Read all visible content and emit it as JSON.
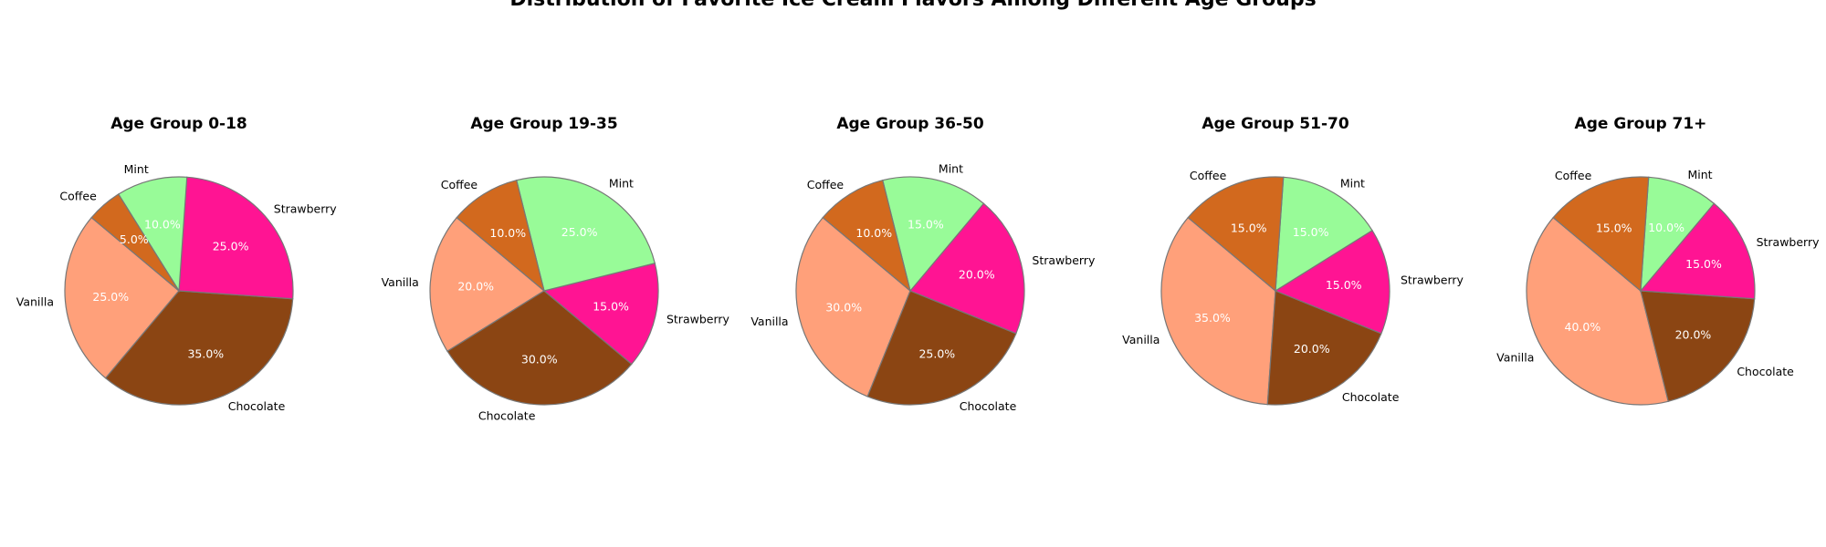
{
  "figure": {
    "title": "Distribution of Favorite Ice Cream Flavors Among Different Age Groups"
  },
  "colors": {
    "Vanilla": "#FFA07A",
    "Chocolate": "#8B4513",
    "Strawberry": "#FF1493",
    "Mint": "#98FB98",
    "Coffee": "#D2691E",
    "edge": "#777777"
  },
  "chart_data": [
    {
      "type": "pie",
      "title": "Age Group 0-18",
      "labels": [
        "Vanilla",
        "Chocolate",
        "Strawberry",
        "Mint",
        "Coffee"
      ],
      "values": [
        25,
        35,
        25,
        10,
        5
      ],
      "value_labels": [
        "25.0%",
        "35.0%",
        "25.0%",
        "10.0%",
        "5.0%"
      ],
      "start_angle_deg": 140
    },
    {
      "type": "pie",
      "title": "Age Group 19-35",
      "labels": [
        "Vanilla",
        "Chocolate",
        "Strawberry",
        "Mint",
        "Coffee"
      ],
      "values": [
        20,
        30,
        15,
        25,
        10
      ],
      "value_labels": [
        "20.0%",
        "30.0%",
        "15.0%",
        "25.0%",
        "10.0%"
      ],
      "start_angle_deg": 140
    },
    {
      "type": "pie",
      "title": "Age Group 36-50",
      "labels": [
        "Vanilla",
        "Chocolate",
        "Strawberry",
        "Mint",
        "Coffee"
      ],
      "values": [
        30,
        25,
        20,
        15,
        10
      ],
      "value_labels": [
        "30.0%",
        "25.0%",
        "20.0%",
        "15.0%",
        "10.0%"
      ],
      "start_angle_deg": 140
    },
    {
      "type": "pie",
      "title": "Age Group 51-70",
      "labels": [
        "Vanilla",
        "Chocolate",
        "Strawberry",
        "Mint",
        "Coffee"
      ],
      "values": [
        35,
        20,
        15,
        15,
        15
      ],
      "value_labels": [
        "35.0%",
        "20.0%",
        "15.0%",
        "15.0%",
        "15.0%"
      ],
      "start_angle_deg": 140
    },
    {
      "type": "pie",
      "title": "Age Group 71+",
      "labels": [
        "Vanilla",
        "Chocolate",
        "Strawberry",
        "Mint",
        "Coffee"
      ],
      "values": [
        40,
        20,
        15,
        10,
        15
      ],
      "value_labels": [
        "40.0%",
        "20.0%",
        "15.0%",
        "10.0%",
        "15.0%"
      ],
      "start_angle_deg": 140
    }
  ]
}
